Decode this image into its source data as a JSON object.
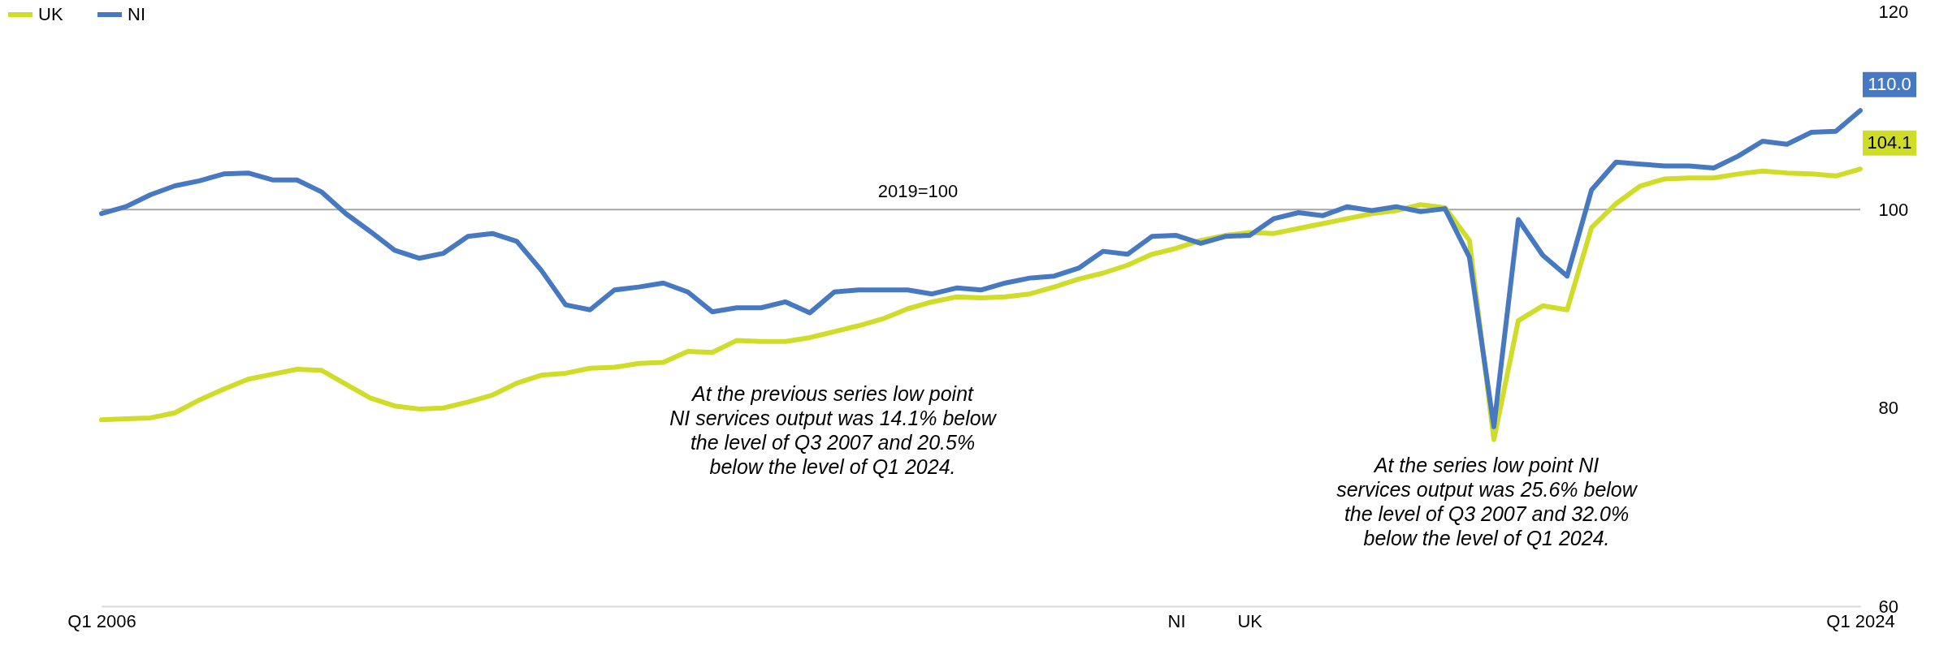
{
  "chart_data": {
    "type": "line",
    "categories": [
      "Q1 2006",
      null,
      null,
      null,
      null,
      null,
      null,
      null,
      null,
      null,
      null,
      null,
      null,
      null,
      null,
      null,
      null,
      null,
      null,
      null,
      null,
      null,
      null,
      null,
      null,
      null,
      null,
      null,
      null,
      null,
      null,
      null,
      null,
      null,
      null,
      null,
      null,
      null,
      null,
      null,
      null,
      null,
      null,
      null,
      "NI",
      null,
      null,
      "UK",
      null,
      null,
      null,
      null,
      null,
      null,
      null,
      null,
      null,
      null,
      null,
      null,
      null,
      null,
      null,
      null,
      null,
      null,
      null,
      null,
      null,
      null,
      null,
      null,
      "Q1 2024"
    ],
    "series": [
      {
        "name": "UK",
        "color": "#cfdd28",
        "values": [
          78.8,
          78.9,
          79.0,
          79.5,
          80.8,
          81.9,
          82.9,
          83.4,
          83.9,
          83.8,
          82.4,
          81.0,
          80.2,
          79.9,
          80.0,
          80.6,
          81.3,
          82.5,
          83.3,
          83.5,
          84.0,
          84.1,
          84.5,
          84.6,
          85.7,
          85.6,
          86.8,
          86.7,
          86.7,
          87.1,
          87.7,
          88.3,
          89.0,
          90.0,
          90.7,
          91.2,
          91.1,
          91.2,
          91.5,
          92.2,
          93.0,
          93.6,
          94.4,
          95.5,
          96.1,
          96.9,
          97.4,
          97.7,
          97.6,
          98.1,
          98.6,
          99.1,
          99.6,
          99.9,
          100.5,
          100.2,
          96.9,
          76.8,
          88.8,
          90.3,
          89.9,
          98.2,
          100.6,
          102.4,
          103.1,
          103.2,
          103.2,
          103.6,
          103.9,
          103.7,
          103.6,
          103.4,
          104.1
        ],
        "value_labels": [
          null,
          null,
          null,
          null,
          null,
          null,
          null,
          null,
          null,
          null,
          null,
          null,
          null,
          null,
          null,
          null,
          null,
          null,
          null,
          null,
          null,
          null,
          null,
          null,
          null,
          null,
          null,
          null,
          null,
          null,
          null,
          null,
          null,
          null,
          null,
          null,
          null,
          null,
          null,
          null,
          null,
          null,
          null,
          null,
          null,
          null,
          null,
          null,
          null,
          null,
          null,
          null,
          null,
          null,
          null,
          null,
          null,
          null,
          null,
          null,
          null,
          null,
          null,
          null,
          null,
          null,
          null,
          null,
          null,
          null,
          null,
          null,
          "104.1"
        ]
      },
      {
        "name": "NI",
        "color": "#4679c2",
        "values": [
          99.6,
          100.3,
          101.5,
          102.4,
          102.9,
          103.6,
          103.7,
          103.0,
          103.0,
          101.8,
          99.6,
          97.8,
          95.9,
          95.1,
          95.6,
          97.3,
          97.6,
          96.8,
          93.9,
          90.4,
          89.9,
          91.9,
          92.2,
          92.6,
          91.7,
          89.7,
          90.1,
          90.1,
          90.7,
          89.6,
          91.7,
          91.9,
          91.9,
          91.9,
          91.5,
          92.1,
          91.9,
          92.6,
          93.1,
          93.3,
          94.1,
          95.8,
          95.5,
          97.3,
          97.4,
          96.6,
          97.3,
          97.4,
          99.1,
          99.7,
          99.4,
          100.3,
          99.9,
          100.3,
          99.8,
          100.1,
          95.2,
          78.1,
          99.0,
          95.4,
          93.3,
          102.0,
          104.8,
          104.6,
          104.4,
          104.4,
          104.2,
          105.4,
          106.9,
          106.6,
          107.8,
          107.9,
          110.0
        ],
        "value_labels": [
          null,
          null,
          null,
          null,
          null,
          null,
          null,
          null,
          null,
          null,
          null,
          null,
          null,
          null,
          null,
          null,
          null,
          null,
          null,
          null,
          null,
          null,
          null,
          null,
          null,
          null,
          null,
          null,
          null,
          null,
          null,
          null,
          null,
          null,
          null,
          null,
          null,
          null,
          null,
          null,
          null,
          null,
          null,
          null,
          null,
          null,
          null,
          null,
          null,
          null,
          null,
          null,
          null,
          null,
          null,
          null,
          null,
          null,
          null,
          null,
          null,
          null,
          null,
          null,
          null,
          null,
          null,
          null,
          null,
          null,
          null,
          null,
          "110.0"
        ]
      }
    ],
    "ylim": [
      60,
      120
    ],
    "yticks": [
      60,
      80,
      100,
      120
    ],
    "ref_lines": [
      {
        "axis": "y",
        "value": 100,
        "label": "2019=100"
      }
    ],
    "annotations": [
      "At the previous series low point NI services output was 14.1% below the level of Q3 2007 and 20.5% below the level of Q1 2024.",
      "At the series low point NI services output was 25.6% below the level of Q3 2007 and 32.0% below the level of Q1 2024."
    ],
    "legend": "top left",
    "marker": "none",
    "line_style": "solid"
  }
}
